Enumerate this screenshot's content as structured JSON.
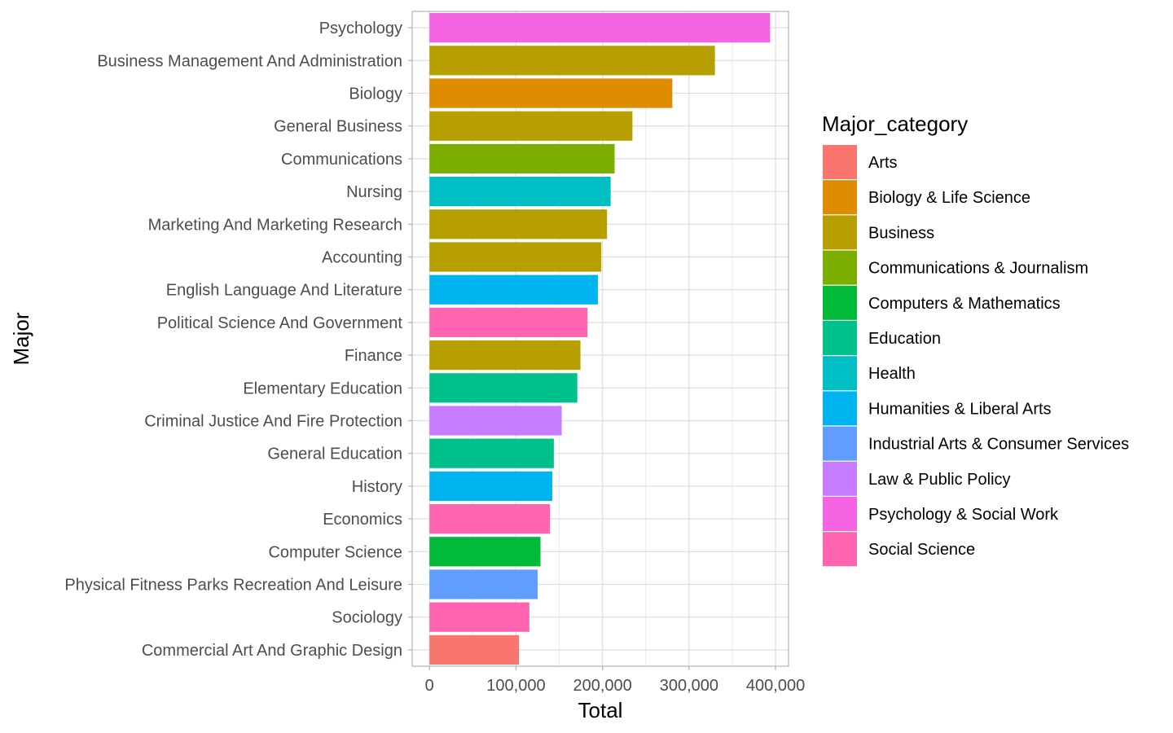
{
  "chart_data": {
    "type": "bar",
    "orientation": "horizontal",
    "xlabel": "Total",
    "ylabel": "Major",
    "xlim": [
      -20000,
      415000
    ],
    "x_ticks": [
      0,
      100000,
      200000,
      300000,
      400000
    ],
    "x_tick_labels": [
      "0",
      "100,000",
      "200,000",
      "300,000",
      "400,000"
    ],
    "grid": true,
    "legend_position": "right",
    "legend_title": "Major_category",
    "legend": [
      {
        "name": "Arts",
        "color": "#F8766D"
      },
      {
        "name": "Biology & Life Science",
        "color": "#DE8C00"
      },
      {
        "name": "Business",
        "color": "#B79F00"
      },
      {
        "name": "Communications & Journalism",
        "color": "#7CAE00"
      },
      {
        "name": "Computers & Mathematics",
        "color": "#00BA38"
      },
      {
        "name": "Education",
        "color": "#00C08B"
      },
      {
        "name": "Health",
        "color": "#00BFC4"
      },
      {
        "name": "Humanities & Liberal Arts",
        "color": "#00B4F0"
      },
      {
        "name": "Industrial Arts & Consumer Services",
        "color": "#619CFF"
      },
      {
        "name": "Law & Public Policy",
        "color": "#C77CFF"
      },
      {
        "name": "Psychology & Social Work",
        "color": "#F564E3"
      },
      {
        "name": "Social Science",
        "color": "#FF64B0"
      }
    ],
    "bars": [
      {
        "major": "Psychology",
        "category": "Psychology & Social Work",
        "value": 393735
      },
      {
        "major": "Business Management And Administration",
        "category": "Business",
        "value": 329927
      },
      {
        "major": "Biology",
        "category": "Biology & Life Science",
        "value": 280709
      },
      {
        "major": "General Business",
        "category": "Business",
        "value": 234590
      },
      {
        "major": "Communications",
        "category": "Communications & Journalism",
        "value": 213996
      },
      {
        "major": "Nursing",
        "category": "Health",
        "value": 209394
      },
      {
        "major": "Marketing And Marketing Research",
        "category": "Business",
        "value": 205211
      },
      {
        "major": "Accounting",
        "category": "Business",
        "value": 198633
      },
      {
        "major": "English Language And Literature",
        "category": "Humanities & Liberal Arts",
        "value": 194673
      },
      {
        "major": "Political Science And Government",
        "category": "Social Science",
        "value": 182621
      },
      {
        "major": "Finance",
        "category": "Business",
        "value": 174506
      },
      {
        "major": "Elementary Education",
        "category": "Education",
        "value": 170862
      },
      {
        "major": "Criminal Justice And Fire Protection",
        "category": "Law & Public Policy",
        "value": 152824
      },
      {
        "major": "General Education",
        "category": "Education",
        "value": 143718
      },
      {
        "major": "History",
        "category": "Humanities & Liberal Arts",
        "value": 141951
      },
      {
        "major": "Economics",
        "category": "Social Science",
        "value": 139247
      },
      {
        "major": "Computer Science",
        "category": "Computers & Mathematics",
        "value": 128319
      },
      {
        "major": "Physical Fitness Parks Recreation And Leisure",
        "category": "Industrial Arts & Consumer Services",
        "value": 125074
      },
      {
        "major": "Sociology",
        "category": "Social Science",
        "value": 115433
      },
      {
        "major": "Commercial Art And Graphic Design",
        "category": "Arts",
        "value": 103480
      }
    ]
  }
}
